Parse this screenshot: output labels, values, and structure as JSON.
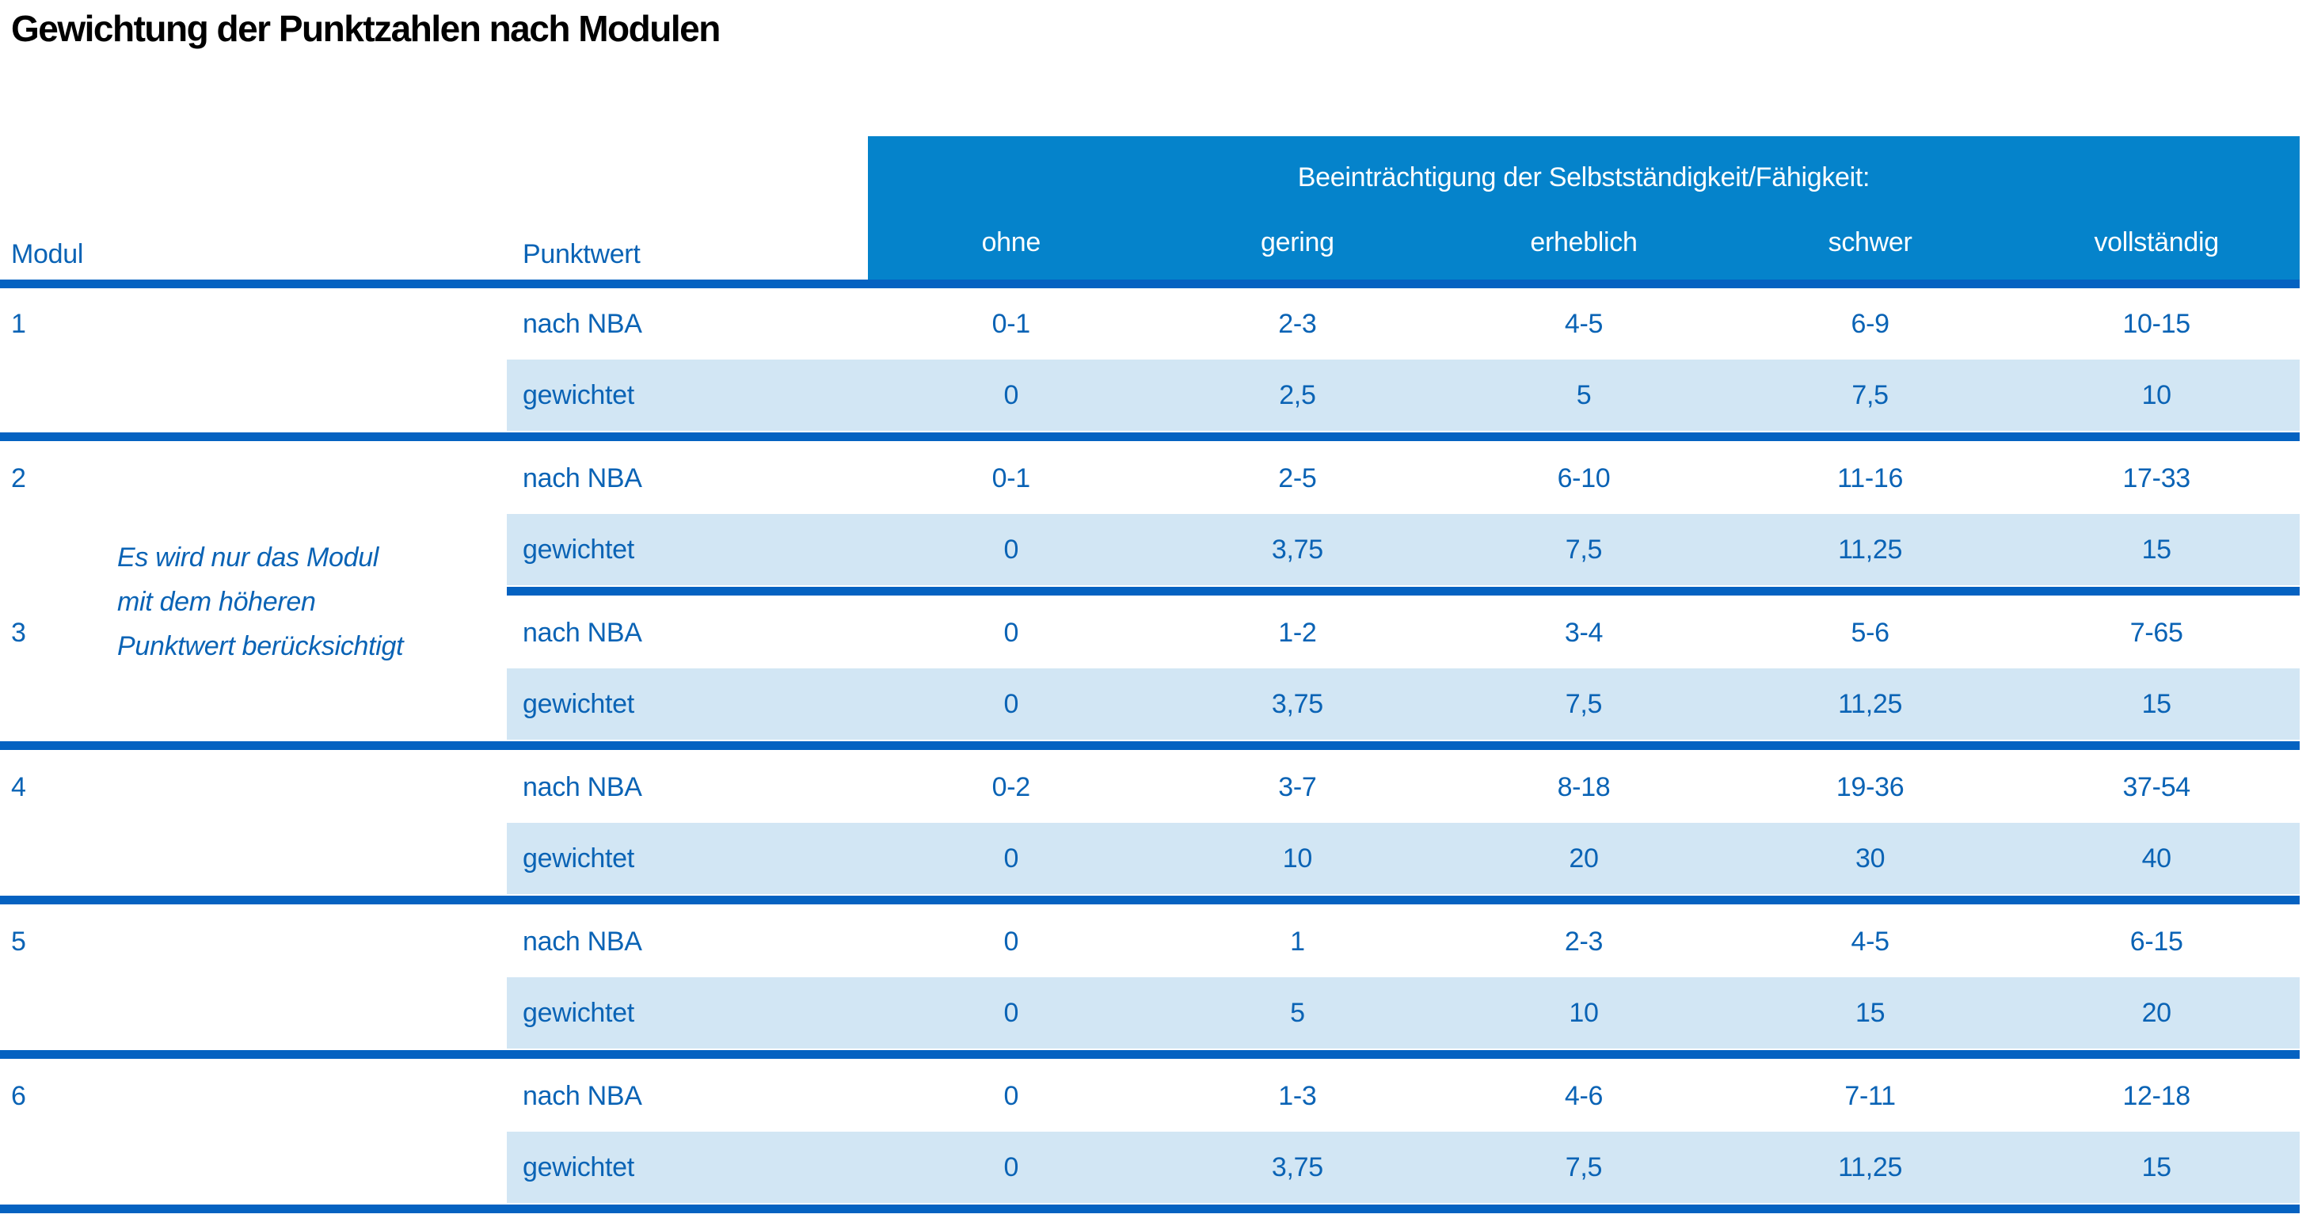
{
  "title": "Gewichtung der Punktzahlen nach Modulen",
  "table": {
    "col_headers": {
      "modul": "Modul",
      "punktwert": "Punktwert"
    },
    "group_header": "Beeinträchtigung der Selbstständigkeit/Fähigkeit:",
    "severity_levels": [
      "ohne",
      "gering",
      "erheblich",
      "schwer",
      "vollständig"
    ],
    "row_labels": {
      "nba": "nach NBA",
      "weighted": "gewichtet"
    },
    "note_lines": [
      "Es wird nur das Modul",
      "mit dem höheren",
      "Punktwert berücksichtigt"
    ],
    "modules": [
      {
        "id": "1",
        "nba": [
          "0-1",
          "2-3",
          "4-5",
          "6-9",
          "10-15"
        ],
        "weighted": [
          "0",
          "2,5",
          "5",
          "7,5",
          "10"
        ]
      },
      {
        "id": "2",
        "nba": [
          "0-1",
          "2-5",
          "6-10",
          "11-16",
          "17-33"
        ],
        "weighted": [
          "0",
          "3,75",
          "7,5",
          "11,25",
          "15"
        ]
      },
      {
        "id": "3",
        "nba": [
          "0",
          "1-2",
          "3-4",
          "5-6",
          "7-65"
        ],
        "weighted": [
          "0",
          "3,75",
          "7,5",
          "11,25",
          "15"
        ]
      },
      {
        "id": "4",
        "nba": [
          "0-2",
          "3-7",
          "8-18",
          "19-36",
          "37-54"
        ],
        "weighted": [
          "0",
          "10",
          "20",
          "30",
          "40"
        ]
      },
      {
        "id": "5",
        "nba": [
          "0",
          "1",
          "2-3",
          "4-5",
          "6-15"
        ],
        "weighted": [
          "0",
          "5",
          "10",
          "15",
          "20"
        ]
      },
      {
        "id": "6",
        "nba": [
          "0",
          "1-3",
          "4-6",
          "7-11",
          "12-18"
        ],
        "weighted": [
          "0",
          "3,75",
          "7,5",
          "11,25",
          "15"
        ]
      }
    ]
  },
  "colors": {
    "header_bg": "#0583cb",
    "weighted_row_bg": "#d2e6f4",
    "rule_blue": "#0562c1",
    "text_blue": "#0a63b5",
    "header_text": "#ffffff",
    "title_text": "#000000"
  }
}
